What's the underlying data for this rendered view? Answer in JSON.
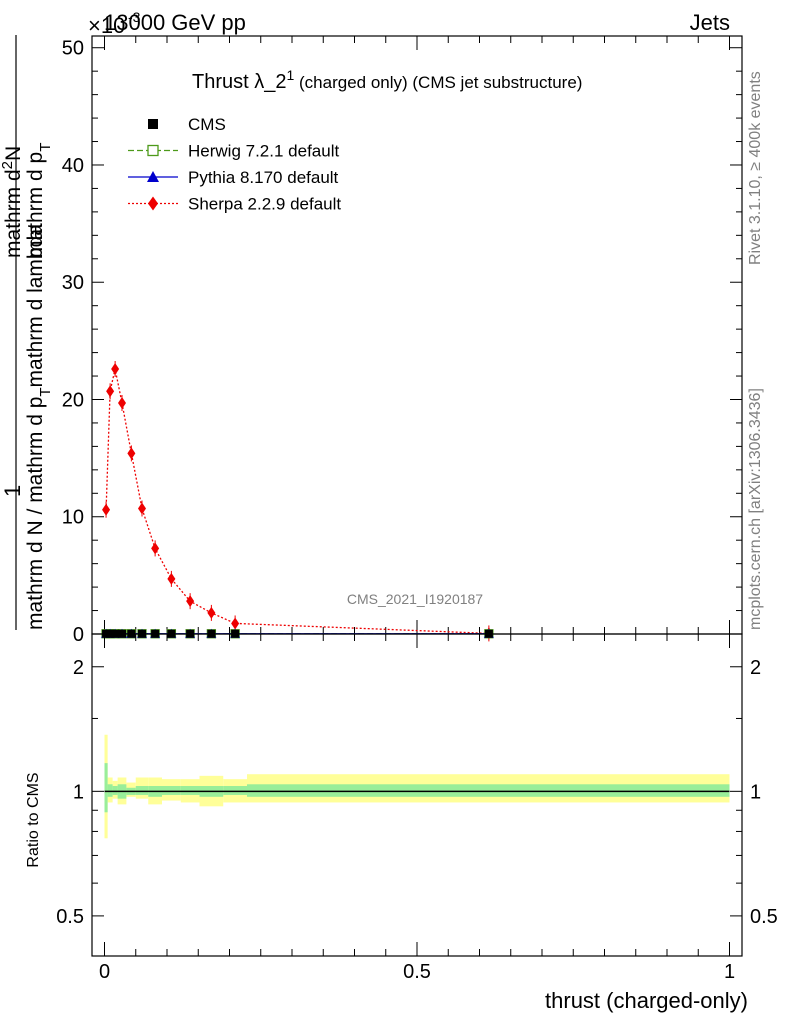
{
  "header": {
    "left_label": "13000 GeV pp",
    "right_label": "Jets",
    "exponent_label": "×10",
    "exponent_power": "-3"
  },
  "side_labels": {
    "rivet": "Rivet 3.1.10, ≥ 400k events",
    "mcplots": "mcplots.cern.ch [arXiv:1306.3436]"
  },
  "watermark": "CMS_2021_I1920187",
  "main_title": {
    "prefix": "Thrust λ_2",
    "superscript": "1",
    "suffix": " (charged only) (CMS jet substructure)"
  },
  "y_axis_main": {
    "numerator": "1",
    "denominator_line1": "mathrm d N / mathrm d p",
    "denominator_line2": "mathrm d p",
    "numerator_line2": "mathrm d",
    "subscript_T": "T",
    "superscript_2": "2",
    "n_label": "N",
    "lambda_label": "mathrm d lambda"
  },
  "y_axis_ratio_label": "Ratio to CMS",
  "x_axis_label": "thrust (charged-only)",
  "legend": [
    {
      "label": "CMS",
      "color": "#000000",
      "marker": "square-filled",
      "line": "none"
    },
    {
      "label": "Herwig 7.2.1 default",
      "color": "#4d9a1a",
      "marker": "square-open",
      "line": "dashed"
    },
    {
      "label": "Pythia 8.170 default",
      "color": "#0000cc",
      "marker": "triangle",
      "line": "solid"
    },
    {
      "label": "Sherpa 2.2.9 default",
      "color": "#ee0000",
      "marker": "diamond",
      "line": "dotted"
    }
  ],
  "chart_data": [
    {
      "type": "line",
      "panel": "main",
      "xlim": [
        -0.02,
        1.02
      ],
      "ylim": [
        0,
        51
      ],
      "y_scale_factor": "1e-3",
      "x_ticks": [
        0,
        0.5,
        1
      ],
      "y_ticks": [
        0,
        10,
        20,
        30,
        40,
        50
      ],
      "series": [
        {
          "name": "Sherpa 2.2.9 default",
          "x": [
            0.0025,
            0.009,
            0.017,
            0.028,
            0.043,
            0.06,
            0.081,
            0.107,
            0.137,
            0.171,
            0.209,
            0.615
          ],
          "y": [
            10.6,
            20.7,
            22.6,
            19.7,
            15.4,
            10.7,
            7.3,
            4.7,
            2.8,
            1.8,
            0.9,
            0.05
          ]
        },
        {
          "name": "CMS",
          "x": [
            0.0025,
            0.009,
            0.017,
            0.028,
            0.043,
            0.06,
            0.081,
            0.107,
            0.137,
            0.171,
            0.209,
            0.615
          ],
          "y": [
            0.02,
            0.02,
            0.02,
            0.02,
            0.02,
            0.02,
            0.02,
            0.02,
            0.02,
            0.02,
            0.02,
            0.02
          ]
        },
        {
          "name": "Herwig 7.2.1 default",
          "x": [
            0.0025,
            0.009,
            0.017,
            0.028,
            0.043,
            0.06,
            0.081,
            0.107,
            0.137,
            0.171,
            0.209,
            0.615
          ],
          "y": [
            0.02,
            0.02,
            0.02,
            0.02,
            0.02,
            0.02,
            0.02,
            0.02,
            0.02,
            0.02,
            0.02,
            0.02
          ]
        },
        {
          "name": "Pythia 8.170 default",
          "x": [
            0.0025,
            0.009,
            0.017,
            0.028,
            0.043,
            0.06,
            0.081,
            0.107,
            0.137,
            0.171,
            0.209,
            0.615
          ],
          "y": [
            0.02,
            0.02,
            0.02,
            0.02,
            0.02,
            0.02,
            0.02,
            0.02,
            0.02,
            0.02,
            0.02,
            0.02
          ]
        }
      ]
    },
    {
      "type": "area",
      "panel": "ratio",
      "xlim": [
        -0.02,
        1.02
      ],
      "ylim": [
        0.4,
        2.4
      ],
      "y_scale": "log",
      "y_ticks": [
        0.5,
        1,
        2
      ],
      "reference_line": 1,
      "bands": [
        {
          "name": "total uncertainty",
          "color": "#ffff99",
          "edges": [
            0,
            0.005,
            0.013,
            0.021,
            0.035,
            0.05,
            0.07,
            0.092,
            0.122,
            0.152,
            0.19,
            0.228,
            1
          ],
          "lo": [
            0.77,
            0.94,
            0.96,
            0.93,
            0.97,
            0.96,
            0.93,
            0.95,
            0.94,
            0.92,
            0.94,
            0.94
          ],
          "hi": [
            1.37,
            1.08,
            1.06,
            1.08,
            1.05,
            1.08,
            1.08,
            1.07,
            1.07,
            1.09,
            1.07,
            1.1
          ]
        },
        {
          "name": "statistical uncertainty",
          "color": "#99ee99",
          "edges": [
            0,
            0.005,
            0.013,
            0.021,
            0.035,
            0.05,
            0.07,
            0.092,
            0.122,
            0.152,
            0.19,
            0.228,
            1
          ],
          "lo": [
            0.89,
            0.97,
            0.98,
            0.96,
            0.98,
            0.98,
            0.97,
            0.98,
            0.98,
            0.97,
            0.98,
            0.97
          ],
          "hi": [
            1.17,
            1.04,
            1.03,
            1.04,
            1.02,
            1.03,
            1.03,
            1.03,
            1.03,
            1.03,
            1.03,
            1.04
          ]
        }
      ]
    }
  ]
}
